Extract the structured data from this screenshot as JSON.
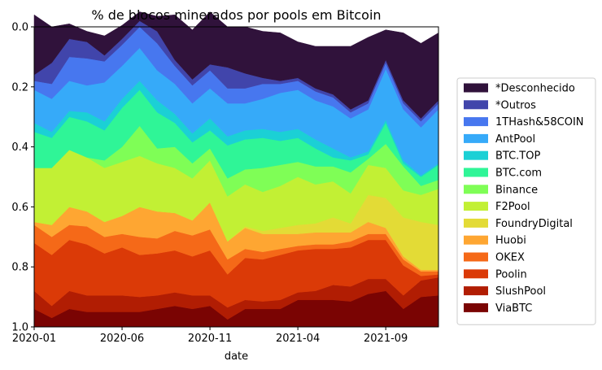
{
  "chart_data": {
    "type": "area",
    "stacked": true,
    "title": "% de blocos minerados por pools em Bitcoin",
    "xlabel": "date",
    "ylabel": "",
    "ylim": [
      0,
      1
    ],
    "y_inverted": true,
    "x_ticks": [
      "2020-01",
      "2020-06",
      "2020-11",
      "2021-04",
      "2021-09"
    ],
    "y_ticks": [
      "0.0",
      "0.2",
      "0.4",
      "0.6",
      "0.8",
      "1.0"
    ],
    "grid": false,
    "legend_position": "right",
    "x": [
      "2020-01",
      "2020-02",
      "2020-03",
      "2020-04",
      "2020-05",
      "2020-06",
      "2020-07",
      "2020-08",
      "2020-09",
      "2020-10",
      "2020-11",
      "2020-12",
      "2021-01",
      "2021-02",
      "2021-03",
      "2021-04",
      "2021-05",
      "2021-06",
      "2021-07",
      "2021-08",
      "2021-09",
      "2021-10",
      "2021-11",
      "2021-12"
    ],
    "series": [
      {
        "name": "ViaBTC",
        "color": "#7a0403",
        "values": [
          0.06,
          0.03,
          0.06,
          0.05,
          0.05,
          0.05,
          0.05,
          0.06,
          0.07,
          0.06,
          0.07,
          0.025,
          0.06,
          0.06,
          0.06,
          0.09,
          0.09,
          0.09,
          0.085,
          0.11,
          0.12,
          0.06,
          0.1,
          0.105
        ]
      },
      {
        "name": "SlushPool",
        "color": "#b11d03",
        "values": [
          0.06,
          0.04,
          0.06,
          0.055,
          0.055,
          0.055,
          0.05,
          0.045,
          0.045,
          0.045,
          0.035,
          0.04,
          0.03,
          0.025,
          0.03,
          0.025,
          0.03,
          0.05,
          0.05,
          0.05,
          0.04,
          0.045,
          0.055,
          0.06
        ]
      },
      {
        "name": "Poolin",
        "color": "#db3a07",
        "values": [
          0.16,
          0.17,
          0.17,
          0.17,
          0.14,
          0.16,
          0.14,
          0.14,
          0.14,
          0.13,
          0.15,
          0.11,
          0.14,
          0.14,
          0.15,
          0.14,
          0.14,
          0.12,
          0.13,
          0.13,
          0.13,
          0.1,
          0.015,
          0.01
        ]
      },
      {
        "name": "OKEX",
        "color": "#f56918",
        "values": [
          0.06,
          0.06,
          0.05,
          0.06,
          0.055,
          0.045,
          0.06,
          0.05,
          0.065,
          0.07,
          0.07,
          0.05,
          0.03,
          0.025,
          0.02,
          0.015,
          0.015,
          0.015,
          0.02,
          0.02,
          0.02,
          0.02,
          0.015,
          0.01
        ]
      },
      {
        "name": "Huobi",
        "color": "#fea632",
        "values": [
          0.01,
          0.04,
          0.06,
          0.05,
          0.05,
          0.06,
          0.1,
          0.09,
          0.06,
          0.05,
          0.09,
          0.06,
          0.07,
          0.06,
          0.05,
          0.04,
          0.04,
          0.04,
          0.03,
          0.04,
          0.02,
          0.01,
          0.005,
          0.005
        ]
      },
      {
        "name": "FoundryDigital",
        "color": "#e3db36",
        "values": [
          0,
          0,
          0,
          0,
          0,
          0,
          0,
          0,
          0,
          0,
          0,
          0,
          0.005,
          0.01,
          0.02,
          0.03,
          0.03,
          0.05,
          0.03,
          0.09,
          0.1,
          0.13,
          0.16,
          0.15
        ]
      },
      {
        "name": "F2Pool",
        "color": "#c2f034",
        "values": [
          0.18,
          0.19,
          0.19,
          0.18,
          0.18,
          0.18,
          0.17,
          0.16,
          0.15,
          0.14,
          0.14,
          0.15,
          0.14,
          0.13,
          0.14,
          0.16,
          0.13,
          0.12,
          0.1,
          0.1,
          0.1,
          0.09,
          0.09,
          0.12
        ]
      },
      {
        "name": "Binance",
        "color": "#7ffe56",
        "values": [
          0,
          0,
          0,
          0,
          0.025,
          0.05,
          0.1,
          0.05,
          0.07,
          0.05,
          0.04,
          0.06,
          0.05,
          0.08,
          0.07,
          0.05,
          0.06,
          0.05,
          0.07,
          0.02,
          0.08,
          0.08,
          0.03,
          0.03
        ]
      },
      {
        "name": "BTC.com",
        "color": "#2ff597",
        "values": [
          0.12,
          0.1,
          0.11,
          0.12,
          0.1,
          0.13,
          0.12,
          0.12,
          0.08,
          0.07,
          0.06,
          0.11,
          0.1,
          0.1,
          0.08,
          0.08,
          0.06,
          0.03,
          0.04,
          0.015,
          0.07,
          0.01,
          0.03,
          0.05
        ]
      },
      {
        "name": "BTC.TOP",
        "color": "#1bd0d5",
        "values": [
          0.03,
          0.02,
          0.02,
          0.03,
          0.03,
          0.03,
          0.03,
          0.04,
          0.03,
          0.03,
          0.04,
          0.03,
          0.03,
          0.03,
          0.03,
          0.03,
          0.03,
          0.03,
          0.01,
          0.01,
          0.01,
          0.01,
          0.005,
          0.005
        ]
      },
      {
        "name": "AntPool",
        "color": "#36aaf9",
        "values": [
          0.11,
          0.11,
          0.1,
          0.09,
          0.13,
          0.11,
          0.11,
          0.1,
          0.1,
          0.1,
          0.1,
          0.11,
          0.09,
          0.1,
          0.13,
          0.13,
          0.13,
          0.14,
          0.13,
          0.14,
          0.17,
          0.17,
          0.16,
          0.18
        ]
      },
      {
        "name": "1THash&58COIN",
        "color": "#4777ef",
        "values": [
          0.03,
          0.05,
          0.08,
          0.09,
          0.07,
          0.07,
          0.07,
          0.09,
          0.06,
          0.06,
          0.06,
          0.05,
          0.05,
          0.05,
          0.03,
          0.03,
          0.03,
          0.03,
          0.02,
          0.02,
          0.02,
          0.02,
          0.02,
          0.02
        ]
      },
      {
        "name": "*Outros",
        "color": "#4145ab",
        "values": [
          0.02,
          0.07,
          0.06,
          0.055,
          0.02,
          0.02,
          0.02,
          0.04,
          0.02,
          0.02,
          0.02,
          0.07,
          0.05,
          0.02,
          0.01,
          0.01,
          0.01,
          0.01,
          0.01,
          0.01,
          0.01,
          0.01,
          0.01,
          0.01
        ]
      },
      {
        "name": "*Desconhecido",
        "color": "#30123b",
        "values": [
          0.2,
          0.12,
          0.05,
          0.035,
          0.065,
          0.045,
          0.03,
          0.05,
          0.15,
          0.165,
          0.175,
          0.135,
          0.155,
          0.155,
          0.16,
          0.12,
          0.14,
          0.16,
          0.21,
          0.21,
          0.1,
          0.225,
          0.25,
          0.225
        ]
      }
    ]
  }
}
